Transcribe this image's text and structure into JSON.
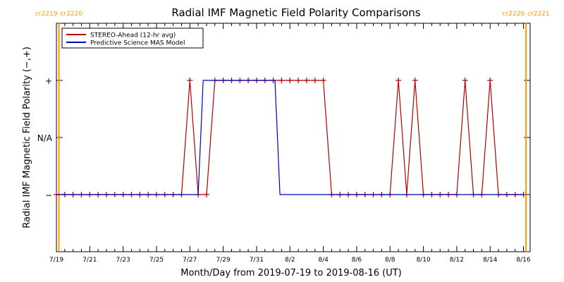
{
  "chart_data": {
    "type": "line",
    "title": "Radial IMF Magnetic Field Polarity Comparisons",
    "xlabel": "Month/Day from 2019-07-19 to 2019-08-16 (UT)",
    "ylabel": "Radial IMF Magnetic Field Polarity (−,+)",
    "x_range": [
      "2019-07-19",
      "2019-08-16"
    ],
    "xlim": [
      0,
      28.4
    ],
    "x_ticks": [
      {
        "day": 0,
        "label": "7/19"
      },
      {
        "day": 2,
        "label": "7/21"
      },
      {
        "day": 4,
        "label": "7/23"
      },
      {
        "day": 6,
        "label": "7/25"
      },
      {
        "day": 8,
        "label": "7/27"
      },
      {
        "day": 10,
        "label": "7/29"
      },
      {
        "day": 12,
        "label": "7/31"
      },
      {
        "day": 14,
        "label": "8/2"
      },
      {
        "day": 16,
        "label": "8/4"
      },
      {
        "day": 18,
        "label": "8/6"
      },
      {
        "day": 20,
        "label": "8/8"
      },
      {
        "day": 22,
        "label": "8/10"
      },
      {
        "day": 24,
        "label": "8/12"
      },
      {
        "day": 26,
        "label": "8/14"
      },
      {
        "day": 28,
        "label": "8/16"
      }
    ],
    "y_levels": [
      {
        "value": -1,
        "label": "−"
      },
      {
        "value": 0,
        "label": "N/A"
      },
      {
        "value": 1,
        "label": "+"
      }
    ],
    "ylim": [
      -2,
      2
    ],
    "legend_position": "top-left",
    "carrington_markers": [
      {
        "day": 0.15,
        "left_label": "cr2219",
        "right_label": "cr2220",
        "color": "#ff9900"
      },
      {
        "day": 28.15,
        "left_label": "cr2220",
        "right_label": "cr2221",
        "color": "#ff9900"
      }
    ],
    "series": [
      {
        "name": "STEREO-Ahead (12-hr avg)",
        "color": "#b00000",
        "marker": "plus",
        "x": [
          0,
          0.5,
          1,
          1.5,
          2,
          2.5,
          3,
          3.5,
          4,
          4.5,
          5,
          5.5,
          6,
          6.5,
          7,
          7.5,
          8,
          8.5,
          9,
          9.5,
          10,
          10.5,
          11,
          11.5,
          12,
          12.5,
          13,
          13.5,
          14,
          14.5,
          15,
          15.5,
          16,
          16.5,
          17,
          17.5,
          18,
          18.5,
          19,
          19.5,
          20,
          20.5,
          21,
          21.5,
          22,
          22.5,
          23,
          23.5,
          24,
          24.5,
          25,
          25.5,
          26,
          26.5,
          27,
          27.5,
          28
        ],
        "values": [
          -1,
          -1,
          -1,
          -1,
          -1,
          -1,
          -1,
          -1,
          -1,
          -1,
          -1,
          -1,
          -1,
          -1,
          -1,
          -1,
          1,
          -1,
          -1,
          1,
          1,
          1,
          1,
          1,
          1,
          1,
          1,
          1,
          1,
          1,
          1,
          1,
          1,
          -1,
          -1,
          -1,
          -1,
          -1,
          -1,
          -1,
          -1,
          1,
          -1,
          1,
          -1,
          -1,
          -1,
          -1,
          -1,
          1,
          -1,
          -1,
          1,
          -1,
          -1,
          -1,
          -1
        ]
      },
      {
        "name": "Predictive Science MAS Model",
        "color": "#0000c0",
        "marker": "none",
        "x": [
          0,
          8.5,
          8.8,
          13.1,
          13.4,
          28
        ],
        "values": [
          -1,
          -1,
          1,
          1,
          -1,
          -1
        ]
      }
    ]
  }
}
